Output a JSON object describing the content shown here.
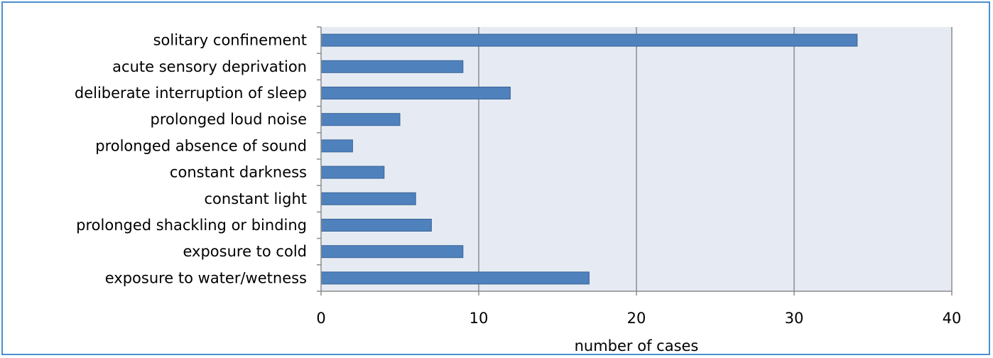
{
  "chart_data": {
    "type": "bar",
    "orientation": "horizontal",
    "categories": [
      "solitary confinement",
      "acute sensory deprivation",
      "deliberate interruption of sleep",
      "prolonged loud noise",
      "prolonged absence of sound",
      "constant darkness",
      "constant light",
      "prolonged shackling or binding",
      "exposure to cold",
      "exposure to water/wetness"
    ],
    "values": [
      34,
      9,
      12,
      5,
      2,
      4,
      6,
      7,
      9,
      17
    ],
    "xlabel": "number of cases",
    "ylabel": "",
    "title": "",
    "xlim": [
      0,
      40
    ],
    "xticks": [
      0,
      10,
      20,
      30,
      40
    ],
    "grid": "vertical",
    "legend": "none",
    "colors": {
      "bar": "#4f81bd",
      "bar_border": "#3a6596",
      "plot_background": "#e6ebf3",
      "gridline": "#8c8c8c",
      "frame_border": "#4a8fd0"
    }
  }
}
